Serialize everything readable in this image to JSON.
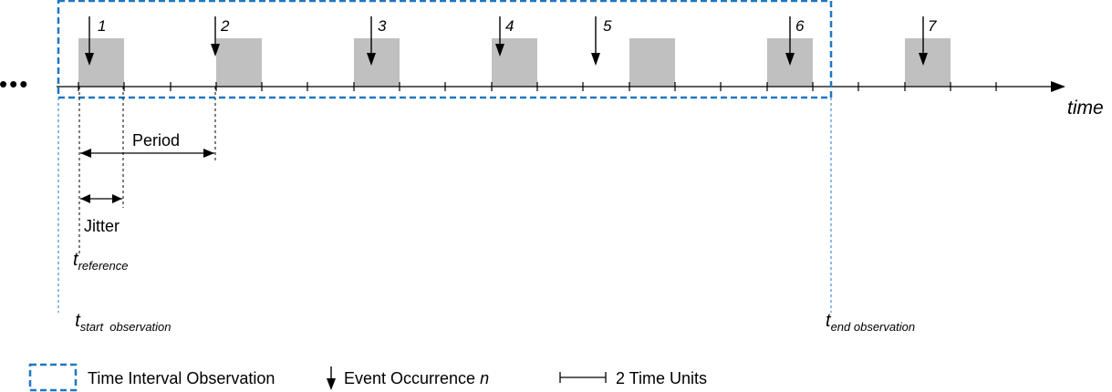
{
  "axis_label": "time",
  "leading_ellipsis": "•••",
  "events": [
    {
      "label": "1"
    },
    {
      "label": "2"
    },
    {
      "label": "3"
    },
    {
      "label": "4"
    },
    {
      "label": "5"
    },
    {
      "label": "6"
    },
    {
      "label": "7"
    }
  ],
  "period_label": "Period",
  "jitter_label": "Jitter",
  "t_reference": {
    "base": "t",
    "sub": "reference"
  },
  "t_start": {
    "base": "t",
    "sub": "start  observation"
  },
  "t_end": {
    "base": "t",
    "sub": "end observation"
  },
  "legend": {
    "interval_label": "Time Interval Observation",
    "event_label": "Event Occurrence ",
    "event_var": "n",
    "unit_label": "2 Time Units"
  },
  "colors": {
    "box_fill": "#c0c0c0",
    "observation_border": "#1f77c4",
    "line": "#000000"
  }
}
